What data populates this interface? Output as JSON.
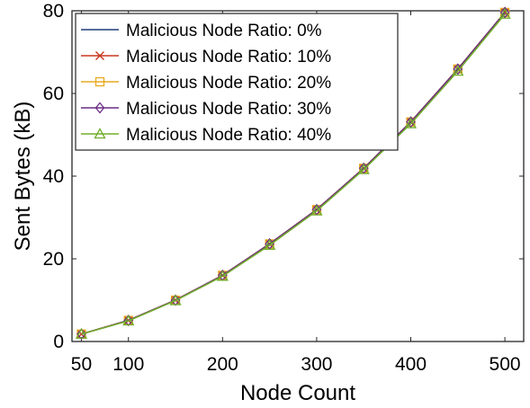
{
  "chart_data": {
    "type": "line",
    "title": "",
    "xlabel": "Node Count",
    "ylabel": "Sent Bytes (kB)",
    "xlim": [
      40,
      520
    ],
    "ylim": [
      0,
      80
    ],
    "xticks": [
      50,
      100,
      200,
      300,
      400,
      500
    ],
    "yticks": [
      0,
      20,
      40,
      60,
      80
    ],
    "grid": false,
    "legend_position": "top-left",
    "x": [
      50,
      100,
      150,
      200,
      250,
      300,
      350,
      400,
      450,
      500
    ],
    "series": [
      {
        "name": "Malicious Node Ratio: 0%",
        "color": "#1f3d7a",
        "marker": "none",
        "values": [
          1.8,
          5.1,
          10.0,
          16.0,
          23.6,
          31.9,
          41.9,
          53.1,
          65.9,
          79.6
        ]
      },
      {
        "name": "Malicious Node Ratio: 10%",
        "color": "#c8391f",
        "marker": "x",
        "values": [
          1.8,
          5.1,
          10.0,
          16.0,
          23.6,
          31.9,
          41.9,
          53.1,
          65.9,
          79.6
        ]
      },
      {
        "name": "Malicious Node Ratio: 20%",
        "color": "#e8a91e",
        "marker": "square",
        "values": [
          1.8,
          5.1,
          10.0,
          16.0,
          23.6,
          31.9,
          41.9,
          53.1,
          65.9,
          79.6
        ]
      },
      {
        "name": "Malicious Node Ratio: 30%",
        "color": "#6a2c82",
        "marker": "diamond",
        "values": [
          1.8,
          5.1,
          10.0,
          16.0,
          23.6,
          31.9,
          41.9,
          53.1,
          65.9,
          79.6
        ]
      },
      {
        "name": "Malicious Node Ratio: 40%",
        "color": "#72ad2c",
        "marker": "triangle",
        "values": [
          1.8,
          5.0,
          9.9,
          15.8,
          23.3,
          31.6,
          41.6,
          52.7,
          65.4,
          79.2
        ]
      }
    ]
  }
}
